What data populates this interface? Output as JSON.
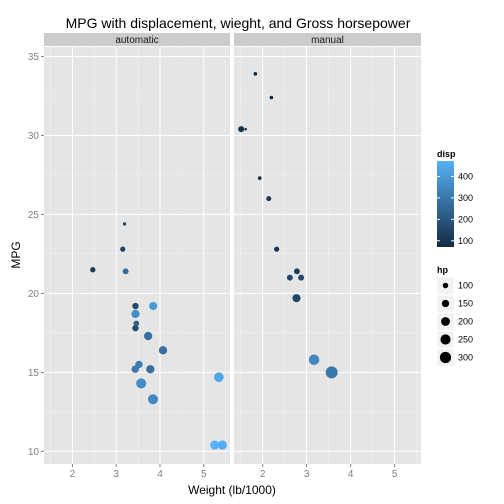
{
  "chart_data": {
    "type": "scatter",
    "title": "MPG with displacement, wieght, and Gross horsepower",
    "xlabel": "Weight (lb/1000)",
    "ylabel": "MPG",
    "xlim": [
      1.35,
      5.6
    ],
    "ylim": [
      9.2,
      35.6
    ],
    "x_ticks": [
      2,
      3,
      4,
      5
    ],
    "y_ticks": [
      10,
      15,
      20,
      25,
      30,
      35
    ],
    "grid": true,
    "legend_position": "right",
    "facets": [
      {
        "label": "automatic",
        "points": [
          {
            "wt": 3.215,
            "mpg": 21.4,
            "disp": 258,
            "hp": 110
          },
          {
            "wt": 3.44,
            "mpg": 18.7,
            "disp": 360,
            "hp": 175
          },
          {
            "wt": 3.46,
            "mpg": 18.1,
            "disp": 225,
            "hp": 105
          },
          {
            "wt": 3.57,
            "mpg": 14.3,
            "disp": 360,
            "hp": 245
          },
          {
            "wt": 3.19,
            "mpg": 24.4,
            "disp": 146.7,
            "hp": 62
          },
          {
            "wt": 3.15,
            "mpg": 22.8,
            "disp": 140.8,
            "hp": 95
          },
          {
            "wt": 3.44,
            "mpg": 19.2,
            "disp": 167.6,
            "hp": 123
          },
          {
            "wt": 3.44,
            "mpg": 17.8,
            "disp": 167.6,
            "hp": 123
          },
          {
            "wt": 4.07,
            "mpg": 16.4,
            "disp": 275.8,
            "hp": 180
          },
          {
            "wt": 3.73,
            "mpg": 17.3,
            "disp": 275.8,
            "hp": 180
          },
          {
            "wt": 3.78,
            "mpg": 15.2,
            "disp": 275.8,
            "hp": 180
          },
          {
            "wt": 5.25,
            "mpg": 10.4,
            "disp": 472,
            "hp": 205
          },
          {
            "wt": 5.424,
            "mpg": 10.4,
            "disp": 460,
            "hp": 215
          },
          {
            "wt": 5.345,
            "mpg": 14.7,
            "disp": 440,
            "hp": 230
          },
          {
            "wt": 2.465,
            "mpg": 21.5,
            "disp": 120.1,
            "hp": 97
          },
          {
            "wt": 3.52,
            "mpg": 15.5,
            "disp": 318,
            "hp": 150
          },
          {
            "wt": 3.435,
            "mpg": 15.2,
            "disp": 304,
            "hp": 150
          },
          {
            "wt": 3.84,
            "mpg": 13.3,
            "disp": 350,
            "hp": 245
          },
          {
            "wt": 3.845,
            "mpg": 19.2,
            "disp": 400,
            "hp": 175
          }
        ]
      },
      {
        "label": "manual",
        "points": [
          {
            "wt": 2.62,
            "mpg": 21.0,
            "disp": 160,
            "hp": 110
          },
          {
            "wt": 2.875,
            "mpg": 21.0,
            "disp": 160,
            "hp": 110
          },
          {
            "wt": 2.32,
            "mpg": 22.8,
            "disp": 108,
            "hp": 93
          },
          {
            "wt": 2.2,
            "mpg": 32.4,
            "disp": 78.7,
            "hp": 66
          },
          {
            "wt": 1.615,
            "mpg": 30.4,
            "disp": 75.7,
            "hp": 52
          },
          {
            "wt": 1.835,
            "mpg": 33.9,
            "disp": 71.1,
            "hp": 65
          },
          {
            "wt": 1.935,
            "mpg": 27.3,
            "disp": 79,
            "hp": 66
          },
          {
            "wt": 2.14,
            "mpg": 26.0,
            "disp": 120.3,
            "hp": 91
          },
          {
            "wt": 1.513,
            "mpg": 30.4,
            "disp": 95.1,
            "hp": 113
          },
          {
            "wt": 3.17,
            "mpg": 15.8,
            "disp": 351,
            "hp": 264
          },
          {
            "wt": 2.77,
            "mpg": 19.7,
            "disp": 145,
            "hp": 175
          },
          {
            "wt": 3.57,
            "mpg": 15.0,
            "disp": 301,
            "hp": 335
          },
          {
            "wt": 2.78,
            "mpg": 21.4,
            "disp": 121,
            "hp": 109
          }
        ]
      }
    ],
    "legend": {
      "color": {
        "title": "disp",
        "breaks": [
          100,
          200,
          300,
          400
        ],
        "range": [
          71.1,
          472
        ],
        "low_color": "#132B43",
        "high_color": "#56B1F7"
      },
      "size": {
        "title": "hp",
        "breaks": [
          100,
          150,
          200,
          250,
          300
        ],
        "range": [
          52,
          335
        ]
      }
    }
  },
  "colors": {
    "panel_background": "#e5e5e5",
    "grid_major": "#ffffff",
    "grid_minor": "#f2f2f2",
    "strip_background": "#cccccc",
    "tick_text": "#7f7f7f"
  }
}
